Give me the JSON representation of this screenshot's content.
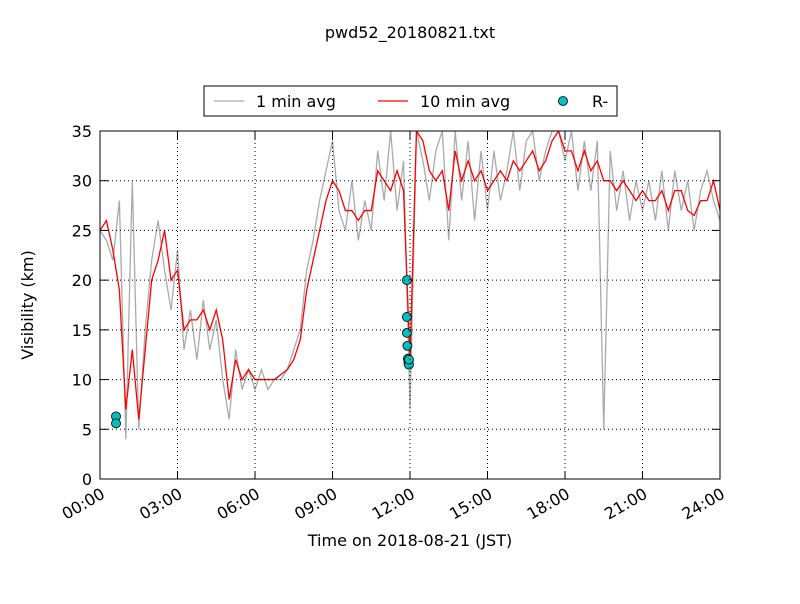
{
  "chart_data": {
    "type": "line",
    "title": "pwd52_20180821.txt",
    "xlabel": "Time on 2018-08-21 (JST)",
    "ylabel": "Visibility (km)",
    "x": [
      0,
      0.25,
      0.5,
      0.75,
      1,
      1.25,
      1.5,
      1.75,
      2,
      2.25,
      2.5,
      2.75,
      3,
      3.25,
      3.5,
      3.75,
      4,
      4.25,
      4.5,
      4.75,
      5,
      5.25,
      5.5,
      5.75,
      6,
      6.25,
      6.5,
      6.75,
      7,
      7.25,
      7.5,
      7.75,
      8,
      8.25,
      8.5,
      8.75,
      9,
      9.25,
      9.5,
      9.75,
      10,
      10.25,
      10.5,
      10.75,
      11,
      11.25,
      11.5,
      11.75,
      12,
      12.25,
      12.5,
      12.75,
      13,
      13.25,
      13.5,
      13.75,
      14,
      14.25,
      14.5,
      14.75,
      15,
      15.25,
      15.5,
      15.75,
      16,
      16.25,
      16.5,
      16.75,
      17,
      17.25,
      17.5,
      17.75,
      18,
      18.25,
      18.5,
      18.75,
      19,
      19.25,
      19.5,
      19.75,
      20,
      20.25,
      20.5,
      20.75,
      21,
      21.25,
      21.5,
      21.75,
      22,
      22.25,
      22.5,
      22.75,
      23,
      23.25,
      23.5,
      23.75,
      24
    ],
    "series": [
      {
        "name": "1 min avg",
        "color": "#aaaaaa",
        "values": [
          25,
          24,
          22,
          28,
          4,
          30,
          5,
          15,
          22,
          26,
          21,
          17,
          23,
          13,
          17,
          12,
          18,
          13,
          16,
          10,
          6,
          13,
          9,
          11,
          9,
          11,
          9,
          10,
          10,
          11,
          13,
          15,
          21,
          24,
          28,
          31,
          34,
          27,
          25,
          30,
          24,
          28,
          25,
          33,
          28,
          35,
          27,
          32,
          7,
          35,
          32,
          28,
          33,
          35,
          24,
          35,
          28,
          34,
          26,
          33,
          27,
          33,
          28,
          31,
          35,
          29,
          34,
          35,
          30,
          33,
          35,
          35,
          32,
          35,
          29,
          34,
          29,
          34,
          5,
          33,
          27,
          31,
          26,
          30,
          27,
          30,
          26,
          31,
          25,
          31,
          27,
          30,
          25,
          29,
          31,
          28,
          26
        ]
      },
      {
        "name": "10 min avg",
        "color": "#ff0000",
        "values": [
          25,
          26,
          23,
          19,
          7,
          13,
          6,
          13,
          20,
          22,
          25,
          20,
          21,
          15,
          16,
          16,
          17,
          15,
          17,
          14,
          8,
          12,
          10,
          11,
          10,
          10,
          10,
          10,
          10.5,
          11,
          12,
          14,
          19,
          22,
          25,
          28,
          30,
          29,
          27,
          27,
          26,
          27,
          27,
          31,
          30,
          29,
          31,
          29,
          12,
          35,
          34,
          31,
          30,
          31,
          27,
          33,
          30,
          32,
          30,
          31,
          29,
          30,
          31,
          30,
          32,
          31,
          32,
          33,
          31,
          32,
          34,
          35,
          33,
          33,
          31,
          33,
          31,
          32,
          30,
          30,
          29,
          30,
          29,
          28,
          29,
          28,
          28,
          29,
          27,
          29,
          29,
          27,
          26.5,
          28,
          28,
          30,
          27
        ]
      },
      {
        "name": "R-",
        "color": "#00bfbf",
        "mode": "markers",
        "x": [
          0.62,
          0.62,
          11.88,
          11.88,
          11.88,
          11.9,
          11.92,
          11.94,
          11.96,
          11.96
        ],
        "values": [
          6.3,
          5.6,
          20,
          16.3,
          14.7,
          13.4,
          12.1,
          11.7,
          11.5,
          12.0
        ]
      }
    ],
    "xlim": [
      0,
      24
    ],
    "xticks": [
      {
        "value": 0,
        "label": "00:00"
      },
      {
        "value": 3,
        "label": "03:00"
      },
      {
        "value": 6,
        "label": "06:00"
      },
      {
        "value": 9,
        "label": "09:00"
      },
      {
        "value": 12,
        "label": "12:00"
      },
      {
        "value": 15,
        "label": "15:00"
      },
      {
        "value": 18,
        "label": "18:00"
      },
      {
        "value": 21,
        "label": "21:00"
      },
      {
        "value": 24,
        "label": "24:00"
      }
    ],
    "ylim": [
      0,
      35
    ],
    "yticks": [
      0,
      5,
      10,
      15,
      20,
      25,
      30,
      35
    ],
    "grid": true,
    "legend": "top"
  }
}
